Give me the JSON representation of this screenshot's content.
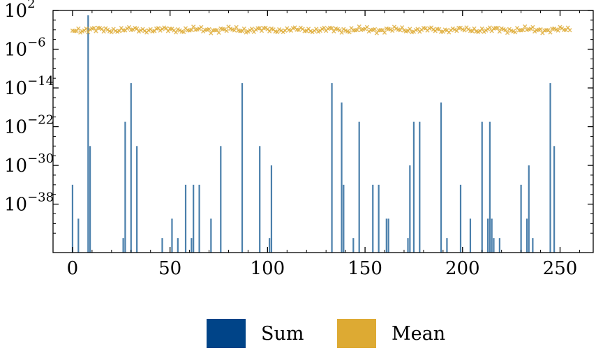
{
  "chart_data": {
    "type": "bar",
    "y_scale": "log",
    "xlim": [
      -10,
      267
    ],
    "ylim_exp": [
      -48,
      2
    ],
    "x_ticks": [
      "0",
      "50",
      "100",
      "150",
      "200",
      "250"
    ],
    "y_ticks": [
      {
        "base": "10",
        "exp": "2"
      },
      {
        "base": "10",
        "exp": "−6"
      },
      {
        "base": "10",
        "exp": "−14"
      },
      {
        "base": "10",
        "exp": "−22"
      },
      {
        "base": "10",
        "exp": "−30"
      },
      {
        "base": "10",
        "exp": "−38"
      }
    ],
    "series": [
      {
        "name": "Sum",
        "kind": "bar",
        "color": "#4a7fab",
        "legend_color": "#004488",
        "points": [
          {
            "x": 0,
            "y": 1e-34
          },
          {
            "x": 3,
            "y": 1e-41
          },
          {
            "x": 8,
            "y": 10
          },
          {
            "x": 9,
            "y": 1e-26
          },
          {
            "x": 26,
            "y": 1e-45
          },
          {
            "x": 27,
            "y": 1e-21
          },
          {
            "x": 30,
            "y": 1e-13
          },
          {
            "x": 33,
            "y": 1e-26
          },
          {
            "x": 46,
            "y": 1e-45
          },
          {
            "x": 51,
            "y": 1e-41
          },
          {
            "x": 54,
            "y": 1e-45
          },
          {
            "x": 58,
            "y": 1e-34
          },
          {
            "x": 61,
            "y": 1e-45
          },
          {
            "x": 62,
            "y": 1e-34
          },
          {
            "x": 65,
            "y": 1e-34
          },
          {
            "x": 71,
            "y": 1e-41
          },
          {
            "x": 76,
            "y": 1e-26
          },
          {
            "x": 87,
            "y": 1e-13
          },
          {
            "x": 96,
            "y": 1e-26
          },
          {
            "x": 101,
            "y": 1e-45
          },
          {
            "x": 102,
            "y": 1e-30
          },
          {
            "x": 133,
            "y": 1e-13
          },
          {
            "x": 138,
            "y": 1e-17
          },
          {
            "x": 139,
            "y": 1e-34
          },
          {
            "x": 144,
            "y": 1e-45
          },
          {
            "x": 147,
            "y": 1e-21
          },
          {
            "x": 154,
            "y": 1e-34
          },
          {
            "x": 157,
            "y": 1e-34
          },
          {
            "x": 161,
            "y": 1e-41
          },
          {
            "x": 162,
            "y": 1e-41
          },
          {
            "x": 172,
            "y": 1e-45
          },
          {
            "x": 173,
            "y": 1e-30
          },
          {
            "x": 175,
            "y": 1e-21
          },
          {
            "x": 178,
            "y": 1e-21
          },
          {
            "x": 189,
            "y": 1e-17
          },
          {
            "x": 192,
            "y": 1e-45
          },
          {
            "x": 199,
            "y": 1e-34
          },
          {
            "x": 204,
            "y": 1e-41
          },
          {
            "x": 210,
            "y": 1e-21
          },
          {
            "x": 213,
            "y": 1e-41
          },
          {
            "x": 214,
            "y": 1e-21
          },
          {
            "x": 215,
            "y": 1e-41
          },
          {
            "x": 216,
            "y": 1e-45
          },
          {
            "x": 219,
            "y": 1e-45
          },
          {
            "x": 230,
            "y": 1e-34
          },
          {
            "x": 233,
            "y": 1e-41
          },
          {
            "x": 234,
            "y": 1e-30
          },
          {
            "x": 236,
            "y": 1e-45
          },
          {
            "x": 245,
            "y": 1e-13
          },
          {
            "x": 247,
            "y": 1e-26
          }
        ]
      },
      {
        "name": "Mean",
        "kind": "scatter",
        "marker": "x",
        "color": "#ddaa33",
        "x_range": [
          0,
          255
        ],
        "y_approx": 0.01
      }
    ],
    "legend_position": "bottom-center",
    "grid": false
  }
}
